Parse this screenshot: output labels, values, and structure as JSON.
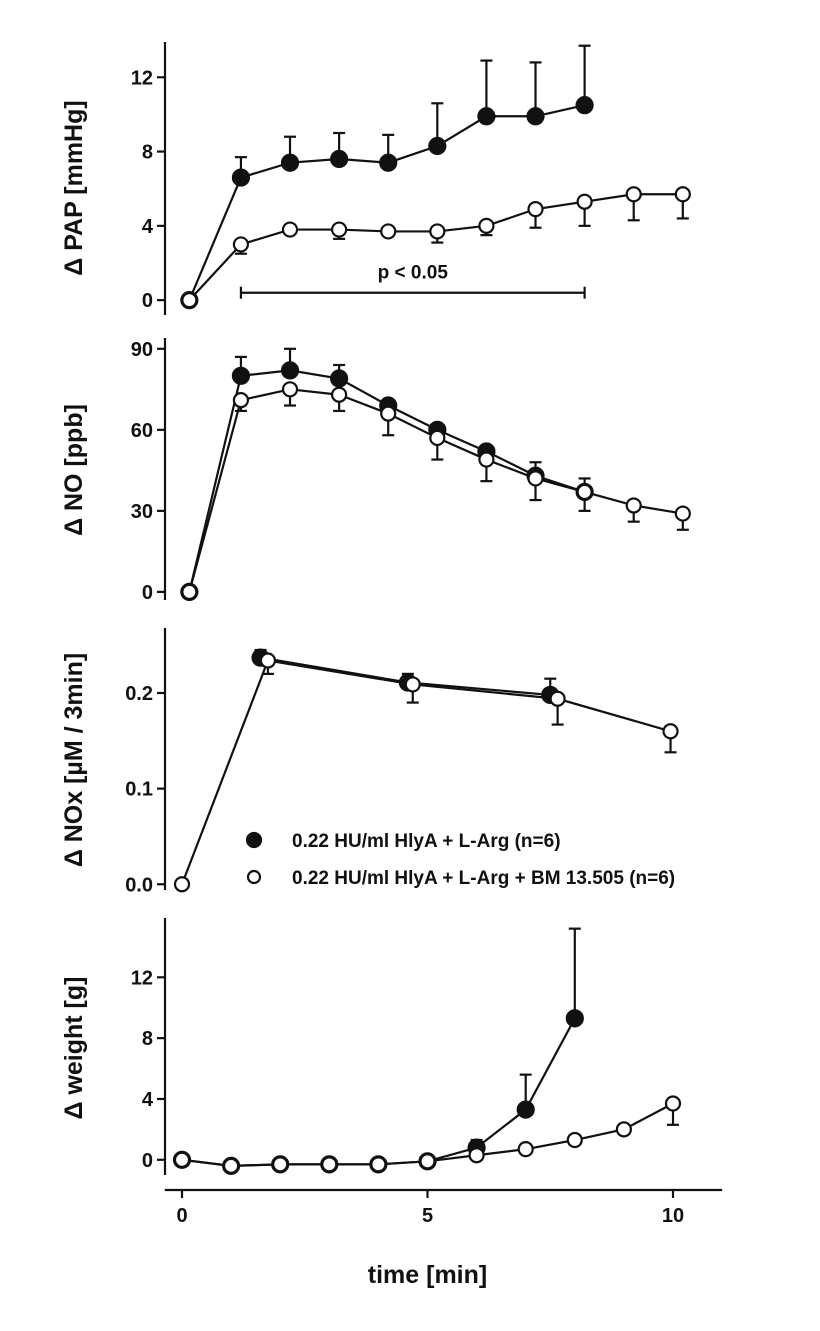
{
  "chart_data": [
    {
      "type": "line",
      "ylabel": "Δ PAP [mmHg]",
      "ylim": [
        -0.8,
        13.9
      ],
      "yticks": [
        0,
        4,
        8,
        12
      ],
      "ytick_labels": [
        "0",
        "4",
        "8",
        "12"
      ],
      "annotation": {
        "text": "p < 0.05",
        "x_from": 1.2,
        "x_to": 8.2,
        "y": 0.4
      },
      "series": [
        {
          "marker": "filled",
          "x": [
            0.15,
            1.2,
            2.2,
            3.2,
            4.2,
            5.2,
            6.2,
            7.2,
            8.2
          ],
          "y": [
            0,
            6.6,
            7.4,
            7.6,
            7.4,
            8.3,
            9.9,
            9.9,
            10.5
          ],
          "err_upper": [
            0,
            7.7,
            8.8,
            9.0,
            8.9,
            10.6,
            12.9,
            12.8,
            13.7
          ]
        },
        {
          "marker": "open",
          "x": [
            0.15,
            1.2,
            2.2,
            3.2,
            4.2,
            5.2,
            6.2,
            7.2,
            8.2,
            9.2,
            10.2
          ],
          "y": [
            0,
            3.0,
            3.8,
            3.8,
            3.7,
            3.7,
            4.0,
            4.9,
            5.3,
            5.7,
            5.7
          ],
          "err_lower": [
            0,
            2.5,
            3.7,
            3.3,
            3.7,
            3.1,
            3.5,
            3.9,
            4.0,
            4.3,
            4.4
          ]
        }
      ]
    },
    {
      "type": "line",
      "ylabel": "Δ NO [ppb]",
      "ylim": [
        -3,
        94
      ],
      "yticks": [
        0,
        30,
        60,
        90
      ],
      "ytick_labels": [
        "0",
        "30",
        "60",
        "90"
      ],
      "series": [
        {
          "marker": "filled",
          "x": [
            0.15,
            1.2,
            2.2,
            3.2,
            4.2,
            5.2,
            6.2,
            7.2,
            8.2
          ],
          "y": [
            0,
            80,
            82,
            79,
            69,
            60,
            52,
            43,
            37
          ],
          "err_upper": [
            0,
            87,
            90,
            84,
            71,
            61,
            54,
            48,
            42
          ]
        },
        {
          "marker": "open",
          "x": [
            0.15,
            1.2,
            2.2,
            3.2,
            4.2,
            5.2,
            6.2,
            7.2,
            8.2,
            9.2,
            10.2
          ],
          "y": [
            0,
            71,
            75,
            73,
            66,
            57,
            49,
            42,
            37,
            32,
            29
          ],
          "err_lower": [
            0,
            67,
            69,
            67,
            58,
            49,
            41,
            34,
            30,
            26,
            23
          ]
        }
      ]
    },
    {
      "type": "line",
      "ylabel": "Δ NOx [µM / 3min]",
      "ylim": [
        -0.006,
        0.268
      ],
      "yticks": [
        0,
        0.1,
        0.2
      ],
      "ytick_labels": [
        "0.0",
        "0.1",
        "0.2"
      ],
      "legend": {
        "placement": "bottom-right",
        "entries": [
          {
            "marker": "filled",
            "label": "0.22 HU/ml HlyA + L-Arg (n=6)"
          },
          {
            "marker": "open",
            "label": "0.22 HU/ml HlyA + L-Arg + BM 13.505 (n=6)"
          }
        ]
      },
      "series": [
        {
          "marker": "filled",
          "x": [
            1.6,
            4.6,
            7.5
          ],
          "y": [
            0.237,
            0.211,
            0.198
          ],
          "err_upper": [
            0.245,
            0.22,
            0.215
          ]
        },
        {
          "marker": "open",
          "x": [
            0,
            1.75,
            4.7,
            7.65,
            9.95
          ],
          "y": [
            0,
            0.234,
            0.209,
            0.194,
            0.16
          ],
          "err_lower": [
            0,
            0.22,
            0.19,
            0.167,
            0.138
          ]
        }
      ]
    },
    {
      "type": "line",
      "ylabel": "Δ weight [g]",
      "xlabel": "time [min]",
      "ylim": [
        -1.0,
        15.9
      ],
      "yticks": [
        0,
        4,
        8,
        12
      ],
      "ytick_labels": [
        "0",
        "4",
        "8",
        "12"
      ],
      "xlim": [
        -0.35,
        11
      ],
      "xticks": [
        0,
        5,
        10
      ],
      "xtick_labels": [
        "0",
        "5",
        "10"
      ],
      "series": [
        {
          "marker": "filled",
          "x": [
            0,
            1,
            2,
            3,
            4,
            5,
            6,
            7,
            8
          ],
          "y": [
            0,
            -0.4,
            -0.3,
            -0.3,
            -0.3,
            -0.1,
            0.8,
            3.3,
            9.3
          ],
          "err_upper": [
            0,
            -0.4,
            -0.3,
            -0.3,
            -0.3,
            -0.1,
            1.3,
            5.6,
            15.2
          ]
        },
        {
          "marker": "open",
          "x": [
            0,
            1,
            2,
            3,
            4,
            5,
            6,
            7,
            8,
            9,
            10
          ],
          "y": [
            0,
            -0.4,
            -0.3,
            -0.3,
            -0.3,
            -0.1,
            0.3,
            0.7,
            1.3,
            2.0,
            3.7
          ],
          "err_lower": [
            0,
            -0.4,
            -0.3,
            -0.3,
            -0.3,
            -0.1,
            0.3,
            0.7,
            1.3,
            2.0,
            2.3
          ]
        }
      ]
    }
  ]
}
